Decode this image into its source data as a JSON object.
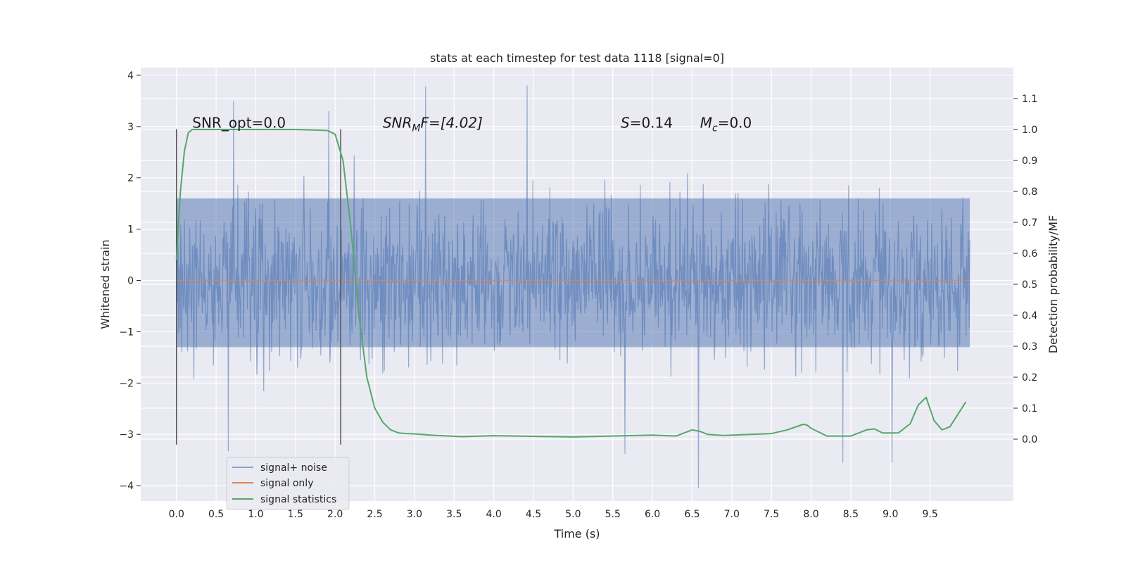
{
  "chart_data": {
    "type": "line",
    "title": "stats at each timestep for test data 1118 [signal=0]",
    "xlabel": "Time (s)",
    "ylabel": "Whitened strain",
    "ylabel_right": "Detection probability/MF",
    "xlim": [
      -0.45,
      10.55
    ],
    "ylim": [
      -4.3,
      4.15
    ],
    "ylim_right": [
      -0.2,
      1.2
    ],
    "x_ticks": [
      0.0,
      0.5,
      1.0,
      1.5,
      2.0,
      2.5,
      3.0,
      3.5,
      4.0,
      4.5,
      5.0,
      5.5,
      6.0,
      6.5,
      7.0,
      7.5,
      8.0,
      8.5,
      9.0,
      9.5
    ],
    "x_tick_labels": [
      "0.0",
      "0.5",
      "1.0",
      "1.5",
      "2.0",
      "2.5",
      "3.0",
      "3.5",
      "4.0",
      "4.5",
      "5.0",
      "5.5",
      "6.0",
      "6.5",
      "7.0",
      "7.5",
      "8.0",
      "8.5",
      "9.0",
      "9.5"
    ],
    "y_ticks": [
      -4,
      -3,
      -2,
      -1,
      0,
      1,
      2,
      3,
      4
    ],
    "y_tick_labels": [
      "−4",
      "−3",
      "−2",
      "−1",
      "0",
      "1",
      "2",
      "3",
      "4"
    ],
    "y2_ticks": [
      0.0,
      0.1,
      0.2,
      0.3,
      0.4,
      0.5,
      0.6,
      0.7,
      0.8,
      0.9,
      1.0,
      1.1
    ],
    "y2_tick_labels": [
      "0.0",
      "0.1",
      "0.2",
      "0.3",
      "0.4",
      "0.5",
      "0.6",
      "0.7",
      "0.8",
      "0.9",
      "1.0",
      "1.1"
    ],
    "grid": true,
    "legend_placement": "lower-left",
    "series": [
      {
        "name": "signal+ noise",
        "color": "#4c72b0",
        "kind": "noise",
        "x_range": [
          0.0,
          10.0
        ],
        "typical_range": [
          -1.3,
          1.6
        ],
        "extremes": [
          {
            "x": 4.42,
            "y": 3.8
          },
          {
            "x": 3.14,
            "y": 3.78
          },
          {
            "x": 6.58,
            "y": -4.05
          },
          {
            "x": 5.65,
            "y": -3.38
          },
          {
            "x": 0.65,
            "y": -3.33
          },
          {
            "x": 8.4,
            "y": -3.55
          },
          {
            "x": 9.02,
            "y": -3.55
          },
          {
            "x": 0.72,
            "y": 3.5
          },
          {
            "x": 1.92,
            "y": 3.3
          }
        ]
      },
      {
        "name": "signal only",
        "color": "#dd8452",
        "x": [
          0.0,
          10.0
        ],
        "y": [
          0.0,
          0.0
        ]
      },
      {
        "name": "signal statistics",
        "color": "#55a868",
        "axis": "right",
        "x": [
          0.0,
          0.05,
          0.1,
          0.15,
          0.2,
          0.3,
          0.5,
          1.0,
          1.5,
          1.9,
          2.0,
          2.1,
          2.2,
          2.3,
          2.4,
          2.5,
          2.6,
          2.7,
          2.8,
          2.9,
          3.0,
          3.2,
          3.6,
          4.0,
          4.5,
          5.0,
          5.5,
          6.0,
          6.3,
          6.5,
          6.6,
          6.7,
          6.9,
          7.5,
          7.7,
          7.9,
          7.95,
          8.0,
          8.2,
          8.5,
          8.7,
          8.8,
          8.9,
          9.1,
          9.25,
          9.35,
          9.45,
          9.55,
          9.65,
          9.75,
          9.85,
          9.95
        ],
        "y": [
          0.58,
          0.8,
          0.93,
          0.99,
          1.0,
          1.0,
          1.0,
          1.0,
          1.0,
          0.997,
          0.985,
          0.9,
          0.68,
          0.4,
          0.2,
          0.1,
          0.055,
          0.03,
          0.02,
          0.018,
          0.017,
          0.013,
          0.008,
          0.011,
          0.009,
          0.007,
          0.01,
          0.013,
          0.01,
          0.03,
          0.025,
          0.015,
          0.012,
          0.018,
          0.03,
          0.048,
          0.045,
          0.035,
          0.01,
          0.01,
          0.03,
          0.033,
          0.02,
          0.02,
          0.05,
          0.11,
          0.135,
          0.06,
          0.03,
          0.04,
          0.08,
          0.12
        ]
      }
    ],
    "vertical_markers": [
      {
        "x": 0.0,
        "ymin": -3.2,
        "ymax": 2.95
      },
      {
        "x": 2.07,
        "ymin": -3.2,
        "ymax": 2.95
      }
    ],
    "annotations": [
      {
        "text": "SNR_opt=0.0",
        "x": 0.2,
        "y": 2.95
      },
      {
        "text_main": "SNR",
        "text_sub": "M",
        "text_rest": "F=[4.02]",
        "x": 2.6,
        "y": 2.95
      },
      {
        "text_main": "S",
        "text_rest": "=0.14",
        "x": 5.6,
        "y": 2.95
      },
      {
        "text_main": "M",
        "text_sub": "c",
        "text_rest": "=0.0",
        "x": 6.6,
        "y": 2.95
      }
    ]
  }
}
